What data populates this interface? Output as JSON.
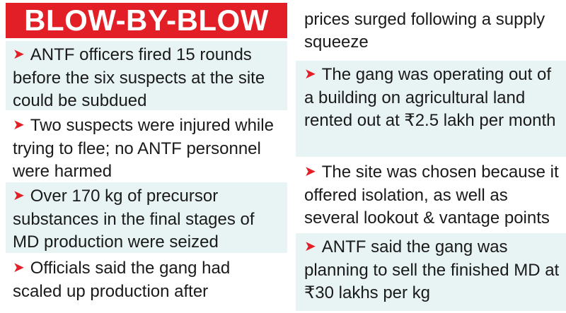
{
  "heading": "BLOW-BY-BLOW",
  "bullet_glyph": "➤",
  "accent_color": "#e21f26",
  "tint_color": "#e8f3f4",
  "left_items": [
    {
      "bullet": "➤",
      "text": "ANTF officers fired 15 rounds before the six suspects at the site could be subdued"
    },
    {
      "bullet": "➤",
      "text": "Two suspects were injured while trying to flee; no ANTF personnel were harmed"
    },
    {
      "bullet": "➤",
      "text": "Over 170 kg of precursor substances in the final stages of MD production were seized"
    },
    {
      "bullet": "➤",
      "text": "Officials said the gang had scaled up production after"
    }
  ],
  "right_items": [
    {
      "text": "prices surged following a supply squeeze"
    },
    {
      "bullet": "➤",
      "text": "The gang was operating out of a building on agricultural land rented out at ₹2.5 lakh per month"
    },
    {
      "bullet": "➤",
      "text": "The site was chosen because it offered isolation, as well as several lookout & vantage points"
    },
    {
      "bullet": "➤",
      "text": "ANTF said the gang was planning to sell the finished MD at ₹30 lakhs per kg"
    }
  ]
}
